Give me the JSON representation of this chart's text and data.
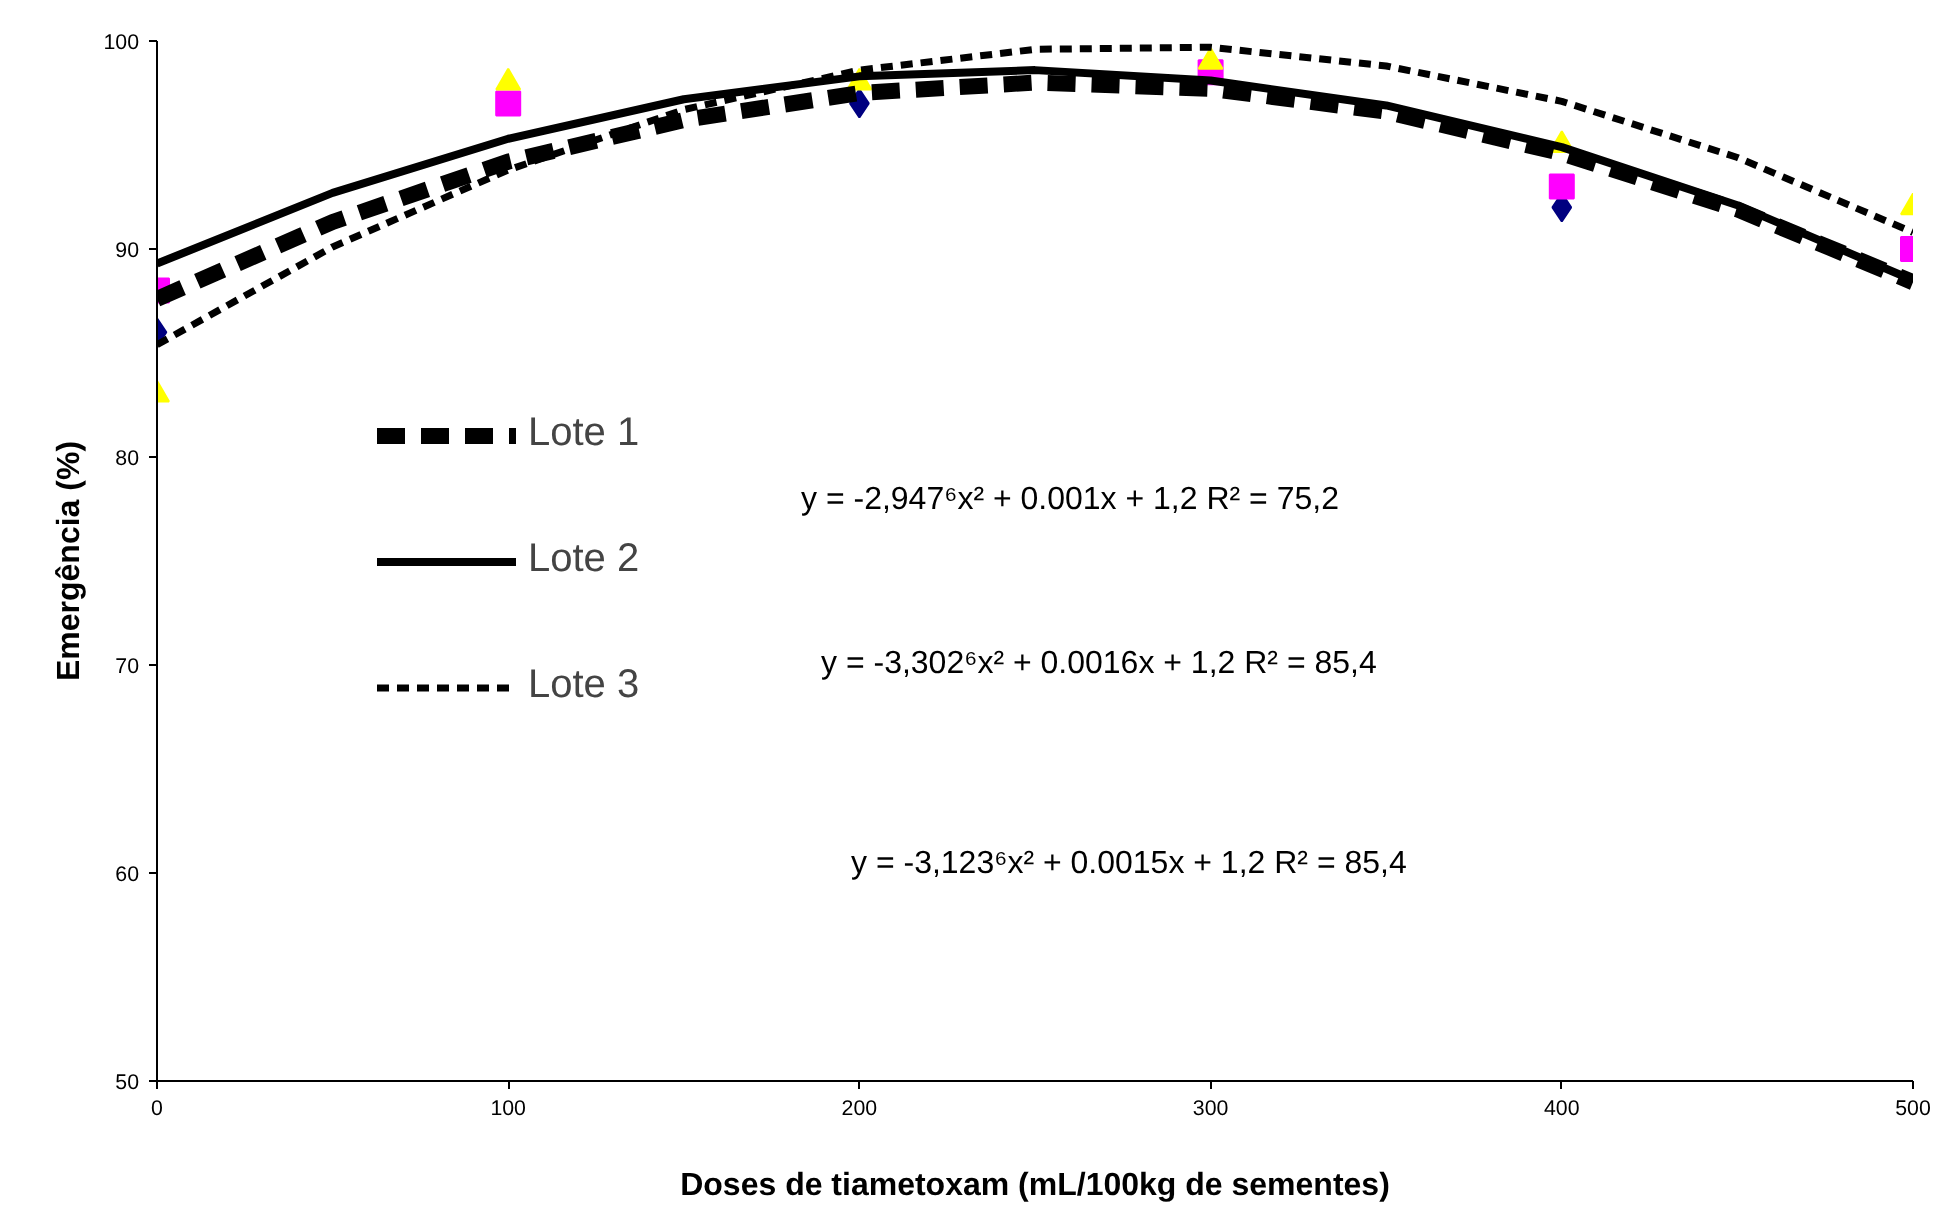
{
  "chart_data": {
    "type": "scatter",
    "xlabel": "Doses de tiametoxam (mL/100kg de sementes)",
    "ylabel": "Emergência (%)",
    "x": [
      0,
      100,
      200,
      300,
      400,
      500
    ],
    "series": [
      {
        "color": "#000080",
        "marker": "diamond",
        "values": [
          86,
          null,
          97,
          null,
          92,
          null
        ]
      },
      {
        "color": "#ff00ff",
        "marker": "square",
        "values": [
          88,
          97,
          null,
          98.5,
          93,
          90
        ]
      },
      {
        "color": "#ffff00",
        "marker": "triangle",
        "values": [
          83,
          98,
          98,
          99,
          95,
          92
        ]
      },
      {
        "type": "line",
        "name": "Lote 1",
        "color": "#000000",
        "line_style": "dashed",
        "x": [
          0,
          50,
          100,
          150,
          200,
          250,
          300,
          350,
          400,
          450,
          500
        ],
        "values": [
          87.6,
          91.3,
          94.2,
          96.2,
          97.5,
          98.0,
          97.7,
          96.6,
          94.6,
          91.9,
          88.4
        ]
      },
      {
        "type": "line",
        "name": "Lote 2",
        "color": "#000000",
        "line_style": "solid",
        "x": [
          0,
          50,
          100,
          150,
          200,
          250,
          300,
          350,
          400,
          450,
          500
        ],
        "values": [
          89.3,
          92.7,
          95.3,
          97.2,
          98.3,
          98.6,
          98.1,
          96.9,
          94.9,
          92.1,
          88.5
        ]
      },
      {
        "type": "line",
        "name": "Lote 3",
        "color": "#000000",
        "line_style": "dashed",
        "x": [
          0,
          50,
          100,
          150,
          200,
          250,
          300,
          350,
          400,
          450,
          500
        ],
        "values": [
          85.4,
          90.1,
          93.8,
          96.7,
          98.6,
          99.6,
          99.7,
          98.8,
          97.1,
          94.4,
          90.8
        ]
      }
    ],
    "annotations": [
      "y = -2,947⁶x² + 0.001x + 1,2 R² = 75,2",
      "y = -3,302⁶x² + 0.0016x + 1,2 R² = 85,4",
      "y = -3,123⁶x² + 0.0015x + 1,2 R² = 85,4"
    ],
    "xlim": [
      0,
      500
    ],
    "xticks": [
      0,
      100,
      200,
      300,
      400,
      500
    ],
    "ylim": [
      50,
      100
    ],
    "yticks": [
      50,
      60,
      70,
      80,
      90,
      100
    ],
    "grid": false,
    "legend": "left"
  }
}
